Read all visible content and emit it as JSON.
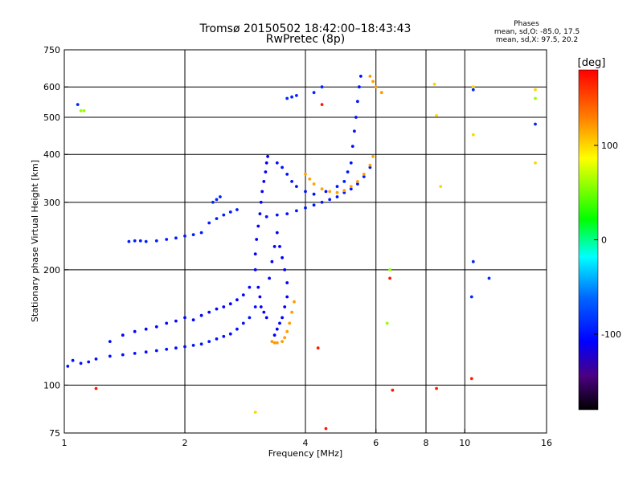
{
  "chart_data": {
    "type": "scatter",
    "title": "Tromsø 20150502 18:42:00–18:43:43",
    "subtitle": "RwPretec (8p)",
    "xlabel": "Frequency [MHz]",
    "ylabel": "Stationary phase Virtual Height [km]",
    "x_scale": "log",
    "y_scale": "log",
    "xlim": [
      1,
      16
    ],
    "ylim": [
      75,
      750
    ],
    "xticks": [
      1,
      2,
      4,
      6,
      8,
      10,
      16
    ],
    "xtick_labels": [
      "1",
      "2",
      "4",
      "6",
      "8",
      "10",
      "16"
    ],
    "yticks": [
      75,
      100,
      200,
      300,
      400,
      500,
      600,
      750
    ],
    "ytick_labels": [
      "75",
      "100",
      "200",
      "300",
      "400",
      "500",
      "600",
      "750"
    ],
    "grid": true,
    "grid_x": [
      2,
      4,
      6,
      8,
      10
    ],
    "grid_y": [
      100,
      200,
      300,
      400,
      500,
      600
    ],
    "stats": {
      "header": "Phases",
      "line1": "mean, sd,O: -85.0, 17.5",
      "line2": "mean, sd,X:  97.5, 20.2"
    },
    "colorbar": {
      "label": "[deg]",
      "range": [
        -180,
        180
      ],
      "ticks": [
        100,
        0,
        -100
      ],
      "tick_labels": [
        "100",
        "0",
        "-100"
      ]
    },
    "traces": [
      {
        "color_phase": -100,
        "points": [
          [
            1.02,
            112
          ],
          [
            1.05,
            116
          ],
          [
            1.1,
            114
          ],
          [
            1.15,
            115
          ],
          [
            1.2,
            117
          ],
          [
            1.3,
            119
          ],
          [
            1.4,
            120
          ],
          [
            1.5,
            121
          ],
          [
            1.6,
            122
          ],
          [
            1.7,
            123
          ],
          [
            1.8,
            124
          ],
          [
            1.9,
            125
          ],
          [
            2.0,
            126
          ],
          [
            2.1,
            127
          ],
          [
            2.2,
            128
          ],
          [
            2.3,
            130
          ],
          [
            2.4,
            132
          ],
          [
            2.5,
            134
          ],
          [
            2.6,
            136
          ],
          [
            2.7,
            140
          ],
          [
            2.8,
            145
          ],
          [
            2.9,
            150
          ],
          [
            3.0,
            160
          ]
        ]
      },
      {
        "color_phase": -105,
        "points": [
          [
            1.3,
            130
          ],
          [
            1.4,
            135
          ],
          [
            1.5,
            138
          ],
          [
            1.6,
            140
          ],
          [
            1.7,
            142
          ],
          [
            1.8,
            145
          ],
          [
            1.9,
            147
          ],
          [
            2.0,
            150
          ],
          [
            2.1,
            148
          ],
          [
            2.2,
            152
          ],
          [
            2.3,
            155
          ],
          [
            2.4,
            158
          ],
          [
            2.5,
            160
          ],
          [
            2.6,
            163
          ],
          [
            2.7,
            167
          ],
          [
            2.8,
            172
          ],
          [
            2.9,
            180
          ]
        ]
      },
      {
        "color_phase": -95,
        "points": [
          [
            1.45,
            237
          ],
          [
            1.5,
            238
          ],
          [
            1.55,
            238
          ],
          [
            1.6,
            237
          ],
          [
            1.7,
            238
          ],
          [
            1.8,
            240
          ],
          [
            1.9,
            242
          ],
          [
            2.0,
            245
          ],
          [
            2.1,
            247
          ],
          [
            2.2,
            250
          ],
          [
            2.3,
            265
          ],
          [
            2.4,
            272
          ],
          [
            2.5,
            278
          ],
          [
            2.6,
            283
          ],
          [
            2.7,
            287
          ]
        ]
      },
      {
        "color_phase": -92,
        "points": [
          [
            2.35,
            300
          ],
          [
            2.4,
            305
          ],
          [
            2.45,
            310
          ]
        ]
      },
      {
        "color_phase": -110,
        "points": [
          [
            3.0,
            200
          ],
          [
            3.0,
            220
          ],
          [
            3.02,
            240
          ],
          [
            3.05,
            260
          ],
          [
            3.08,
            280
          ],
          [
            3.1,
            300
          ],
          [
            3.12,
            320
          ],
          [
            3.15,
            340
          ],
          [
            3.18,
            360
          ],
          [
            3.2,
            380
          ],
          [
            3.22,
            395
          ],
          [
            3.05,
            180
          ],
          [
            3.08,
            170
          ],
          [
            3.1,
            160
          ],
          [
            3.15,
            155
          ],
          [
            3.2,
            150
          ],
          [
            3.25,
            190
          ],
          [
            3.3,
            210
          ],
          [
            3.35,
            230
          ]
        ]
      },
      {
        "color_phase": -108,
        "points": [
          [
            3.4,
            250
          ],
          [
            3.45,
            230
          ],
          [
            3.5,
            215
          ],
          [
            3.55,
            200
          ],
          [
            3.6,
            185
          ],
          [
            3.6,
            170
          ],
          [
            3.55,
            160
          ],
          [
            3.5,
            150
          ],
          [
            3.45,
            145
          ],
          [
            3.4,
            140
          ],
          [
            3.35,
            135
          ]
        ]
      },
      {
        "color_phase": -98,
        "points": [
          [
            3.2,
            275
          ],
          [
            3.4,
            278
          ],
          [
            3.6,
            280
          ],
          [
            3.8,
            285
          ],
          [
            4.0,
            290
          ],
          [
            4.2,
            295
          ],
          [
            4.4,
            300
          ],
          [
            4.6,
            305
          ],
          [
            4.8,
            310
          ],
          [
            5.0,
            318
          ],
          [
            5.2,
            325
          ],
          [
            5.4,
            335
          ],
          [
            5.6,
            350
          ],
          [
            5.8,
            370
          ]
        ]
      },
      {
        "color_phase": -100,
        "points": [
          [
            3.4,
            380
          ],
          [
            3.5,
            370
          ],
          [
            3.6,
            355
          ],
          [
            3.7,
            340
          ],
          [
            3.8,
            330
          ],
          [
            4.0,
            320
          ],
          [
            4.2,
            315
          ],
          [
            4.5,
            320
          ],
          [
            4.8,
            330
          ],
          [
            5.0,
            340
          ],
          [
            5.1,
            360
          ],
          [
            5.2,
            380
          ],
          [
            5.25,
            420
          ],
          [
            5.3,
            460
          ],
          [
            5.35,
            500
          ],
          [
            5.4,
            550
          ],
          [
            5.45,
            600
          ],
          [
            5.5,
            640
          ]
        ]
      },
      {
        "color_phase": -90,
        "points": [
          [
            3.6,
            560
          ],
          [
            3.7,
            565
          ],
          [
            3.8,
            570
          ],
          [
            4.2,
            580
          ],
          [
            4.4,
            600
          ]
        ]
      },
      {
        "color_phase": 120,
        "points": [
          [
            3.3,
            130
          ],
          [
            3.35,
            129
          ],
          [
            3.4,
            129
          ],
          [
            3.5,
            130
          ],
          [
            3.55,
            133
          ],
          [
            3.6,
            138
          ],
          [
            3.65,
            145
          ],
          [
            3.7,
            155
          ],
          [
            3.75,
            165
          ]
        ]
      },
      {
        "color_phase": 118,
        "points": [
          [
            4.0,
            355
          ],
          [
            4.1,
            345
          ],
          [
            4.2,
            335
          ],
          [
            4.4,
            325
          ],
          [
            4.6,
            320
          ],
          [
            4.8,
            318
          ],
          [
            5.0,
            322
          ],
          [
            5.2,
            330
          ],
          [
            5.4,
            340
          ],
          [
            5.6,
            355
          ],
          [
            5.8,
            375
          ],
          [
            5.9,
            395
          ]
        ]
      },
      {
        "color_phase": 120,
        "points": [
          [
            5.8,
            640
          ],
          [
            5.9,
            620
          ],
          [
            6.0,
            600
          ],
          [
            6.2,
            580
          ]
        ]
      },
      {
        "color_phase": 100,
        "points": [
          [
            8.4,
            610
          ],
          [
            8.5,
            505
          ],
          [
            10.5,
            600
          ],
          [
            10.5,
            450
          ],
          [
            15,
            590
          ],
          [
            15,
            380
          ],
          [
            8.7,
            330
          ],
          [
            3.0,
            85
          ]
        ]
      },
      {
        "color_phase": -90,
        "points": [
          [
            10.5,
            590
          ],
          [
            10.5,
            210
          ],
          [
            10.4,
            170
          ],
          [
            11.5,
            190
          ],
          [
            15,
            480
          ],
          [
            1.08,
            540
          ]
        ]
      },
      {
        "color_phase": 60,
        "points": [
          [
            1.1,
            520
          ],
          [
            1.12,
            520
          ],
          [
            15,
            560
          ],
          [
            6.5,
            200
          ],
          [
            6.4,
            145
          ]
        ]
      },
      {
        "color_phase": 170,
        "points": [
          [
            6.5,
            190
          ],
          [
            6.6,
            97
          ],
          [
            8.5,
            98
          ],
          [
            10.4,
            104
          ],
          [
            1.2,
            98
          ],
          [
            4.5,
            77
          ],
          [
            4.3,
            125
          ],
          [
            4.4,
            540
          ]
        ]
      }
    ]
  }
}
